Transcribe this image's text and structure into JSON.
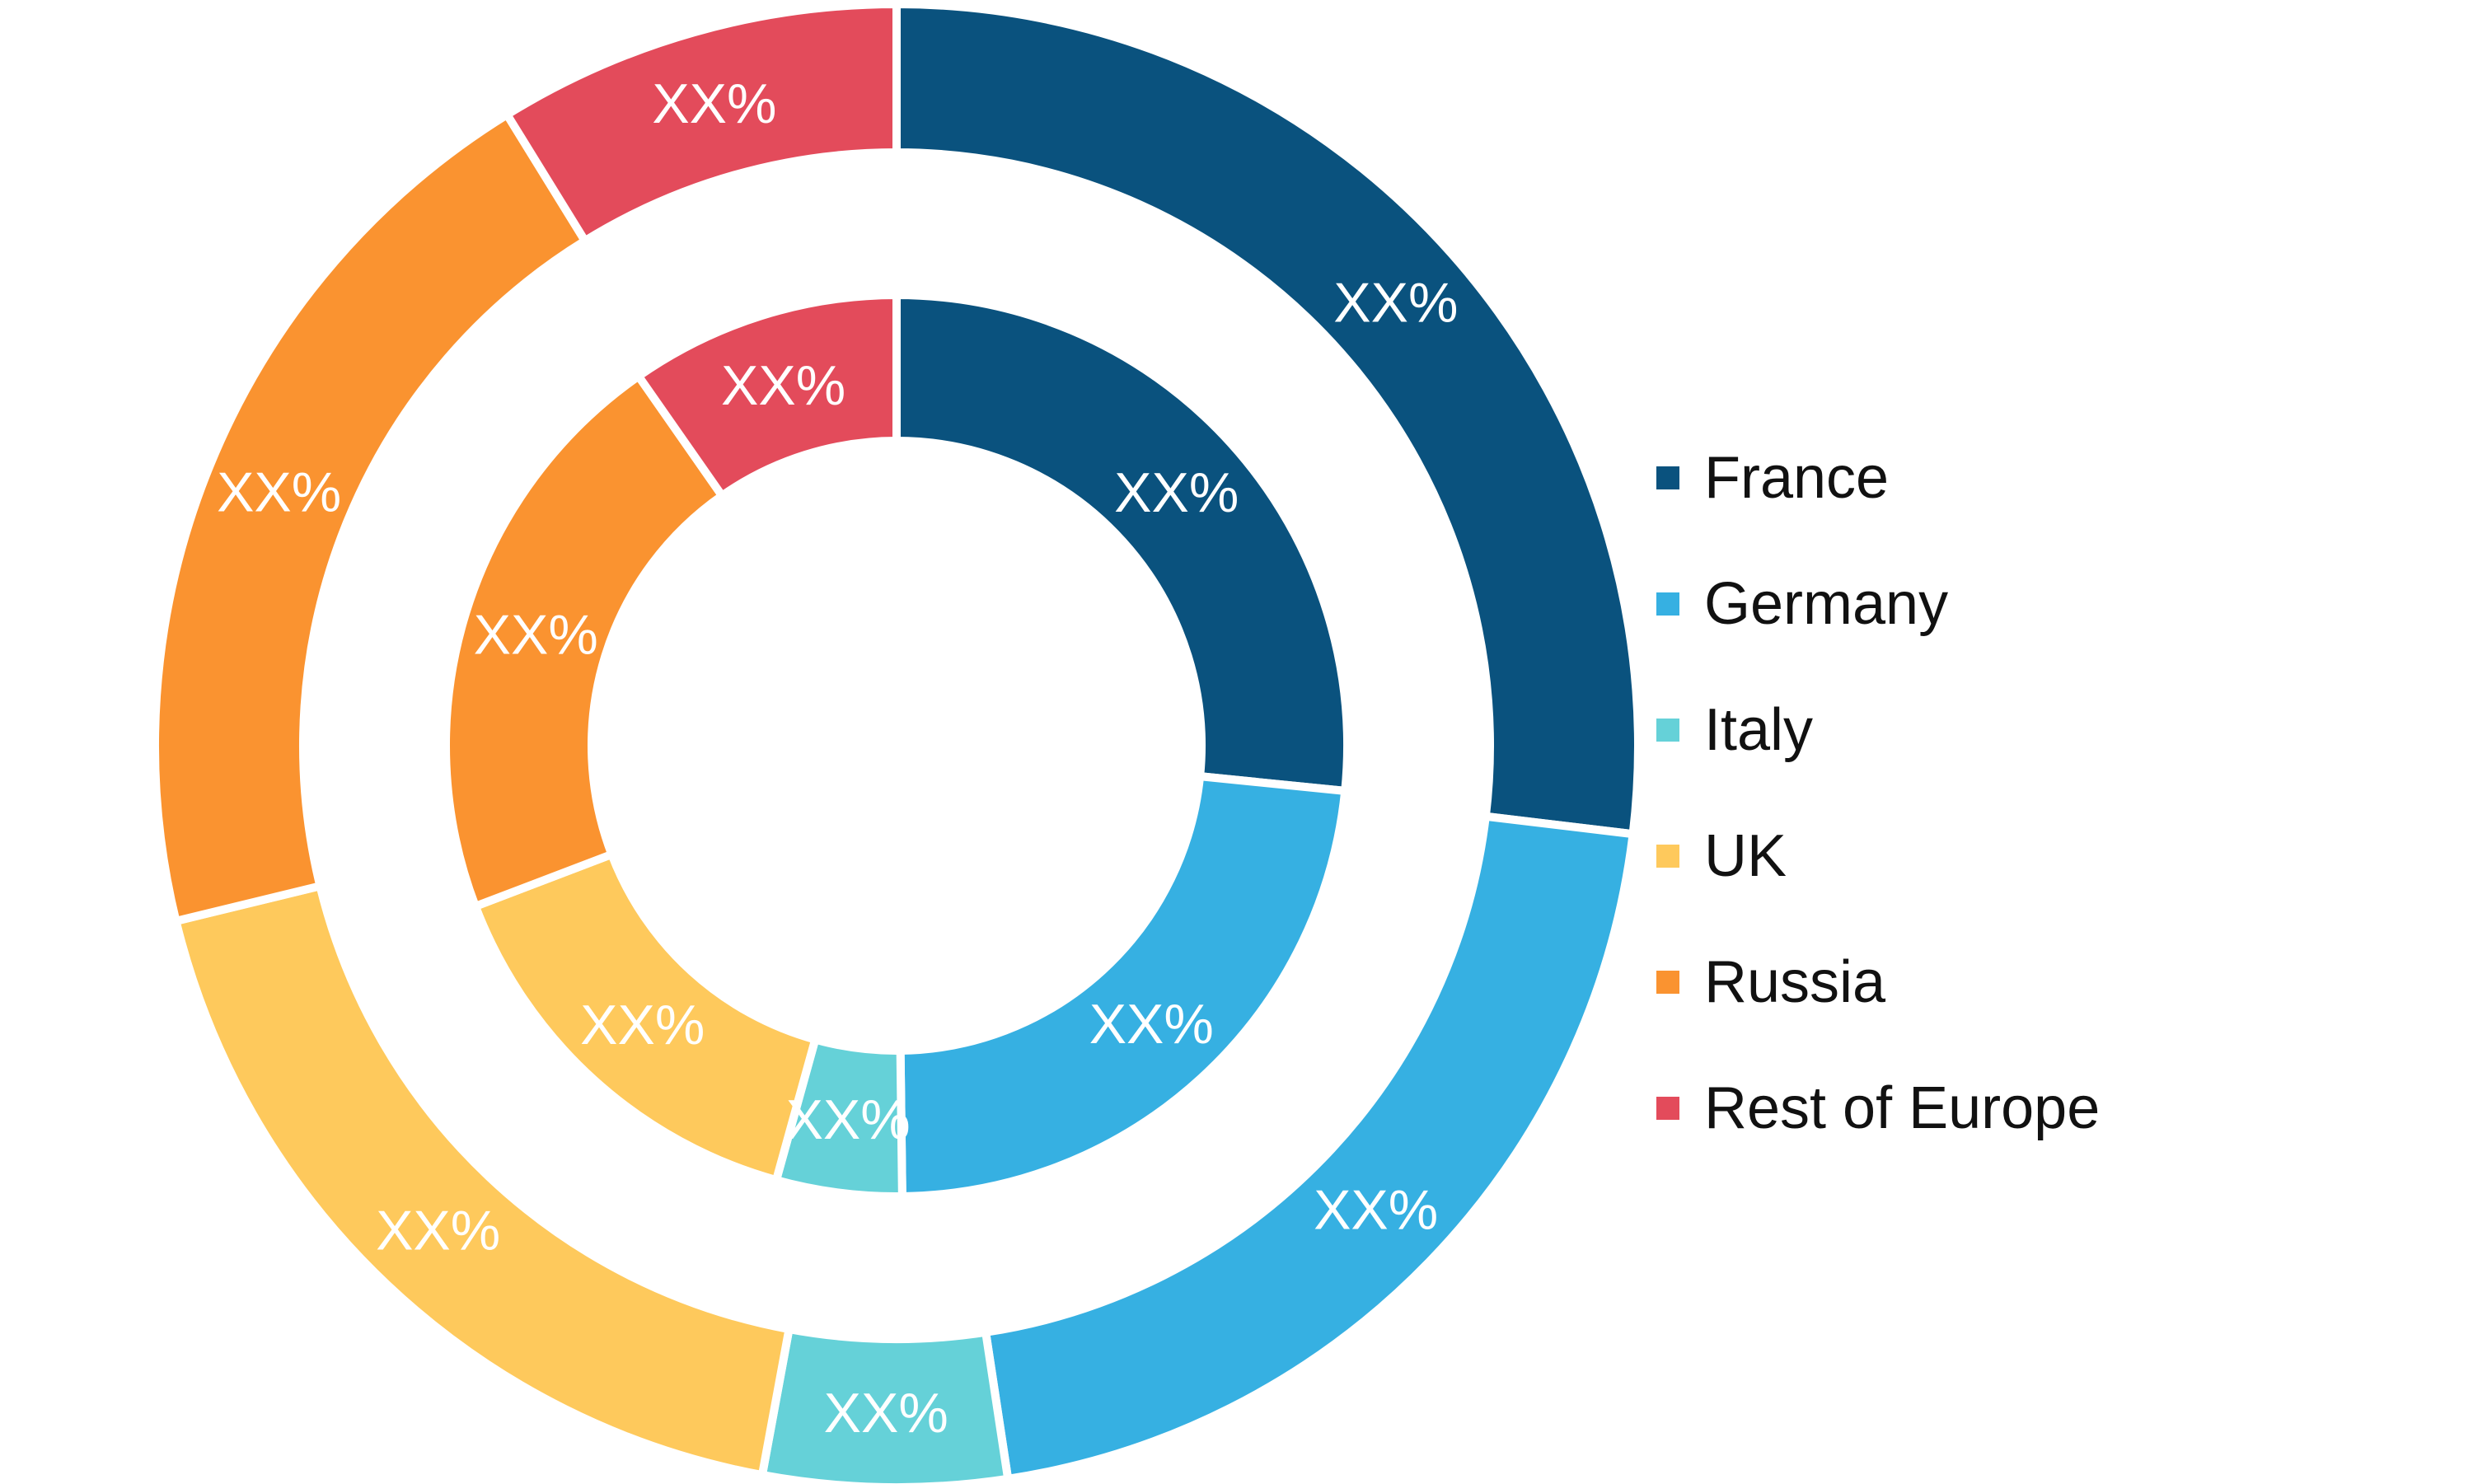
{
  "chart_data": {
    "type": "pie",
    "variant": "nested-donut",
    "title": "",
    "categories": [
      "France",
      "Germany",
      "Italy",
      "UK",
      "Russia",
      "Rest of Europe"
    ],
    "colors": [
      "#0a527e",
      "#36b0e2",
      "#65d1d8",
      "#fec95c",
      "#fa9330",
      "#e34b5b"
    ],
    "series": [
      {
        "ring": "outer",
        "values": [
          26.9,
          20.7,
          5.3,
          18.3,
          20.0,
          8.8
        ],
        "labels": [
          "XX%",
          "XX%",
          "XX%",
          "XX%",
          "XX%",
          "XX%"
        ]
      },
      {
        "ring": "inner",
        "values": [
          26.6,
          23.2,
          4.5,
          14.9,
          21.1,
          9.7
        ],
        "labels": [
          "XX%",
          "XX%",
          "XX%",
          "XX%",
          "XX%",
          "XX%"
        ]
      }
    ],
    "legend": {
      "position": "right",
      "entries": [
        "France",
        "Germany",
        "Italy",
        "UK",
        "Russia",
        "Rest of Europe"
      ]
    }
  }
}
